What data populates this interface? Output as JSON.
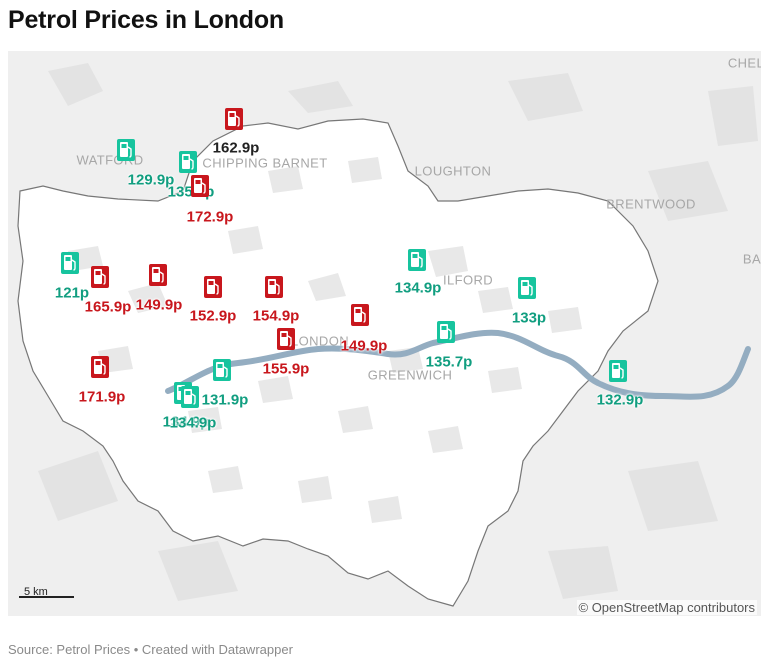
{
  "title": "Petrol Prices in London",
  "footer": "Source: Petrol Prices • Created with Datawrapper",
  "attribution": "© OpenStreetMap contributors",
  "scale_label": "5 km",
  "colors": {
    "high": "#c8171d",
    "low": "#17c49e",
    "low_dark": "#119e80",
    "land_outer": "#efefef",
    "land_inner": "#ffffff",
    "river": "#94adc1",
    "boundary": "#777777"
  },
  "places": [
    {
      "name": "WATFORD"
    },
    {
      "name": "CHIPPING BARNET"
    },
    {
      "name": "LOUGHTON"
    },
    {
      "name": "BRENTWOOD"
    },
    {
      "name": "ILFORD"
    },
    {
      "name": "LONDON"
    },
    {
      "name": "GREENWICH"
    },
    {
      "name": "CHEL"
    },
    {
      "name": "BA"
    }
  ],
  "stations": [
    {
      "price": "162.9p",
      "level": "high"
    },
    {
      "price": "129.9p",
      "level": "low"
    },
    {
      "price": "135.7p",
      "level": "low"
    },
    {
      "price": "172.9p",
      "level": "high"
    },
    {
      "price": "121p",
      "level": "low"
    },
    {
      "price": "165.9p",
      "level": "high"
    },
    {
      "price": "149.9p",
      "level": "high"
    },
    {
      "price": "152.9p",
      "level": "high"
    },
    {
      "price": "154.9p",
      "level": "high"
    },
    {
      "price": "155.9p",
      "level": "high"
    },
    {
      "price": "149.9p",
      "level": "high"
    },
    {
      "price": "134.9p",
      "level": "low"
    },
    {
      "price": "133p",
      "level": "low"
    },
    {
      "price": "135.7p",
      "level": "low"
    },
    {
      "price": "132.9p",
      "level": "low"
    },
    {
      "price": "171.9p",
      "level": "high"
    },
    {
      "price": "131.9p",
      "level": "low"
    },
    {
      "price": "134.9p",
      "level": "low"
    },
    {
      "price": "134.9p",
      "level": "low"
    }
  ]
}
